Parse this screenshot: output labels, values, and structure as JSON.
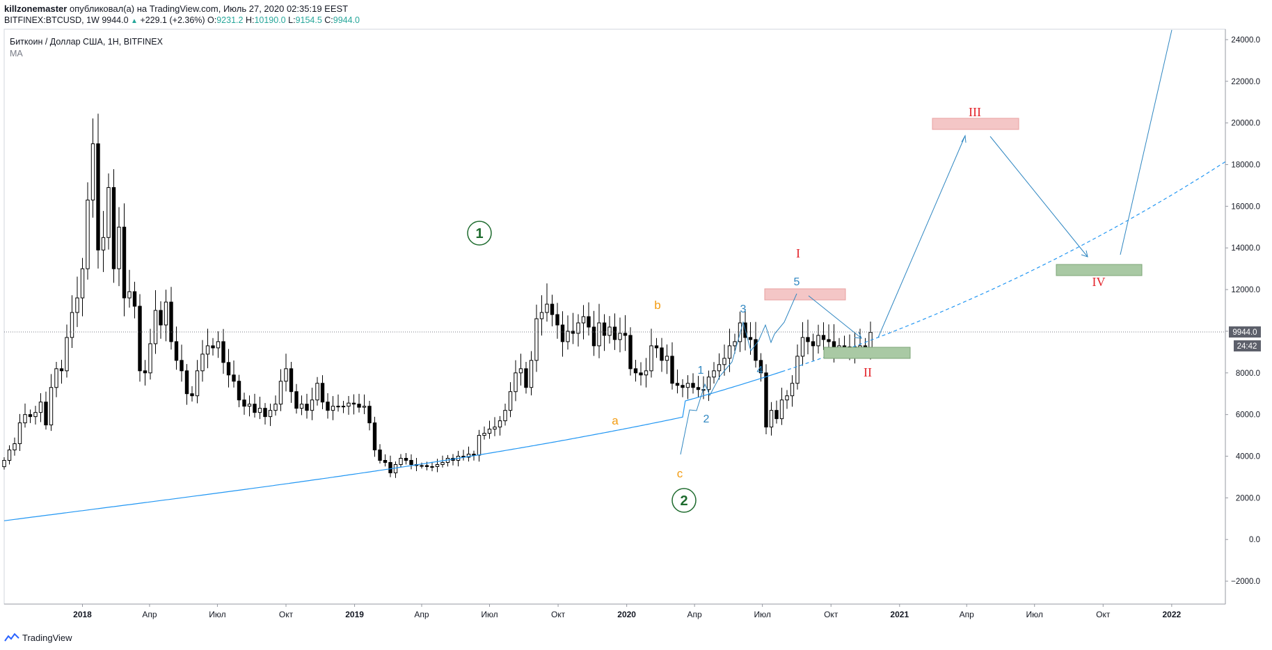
{
  "header": {
    "author": "killzonemaster",
    "published_text": "опубликовал(а) на TradingView.com, Июль 27, 2020 02:35:19 EEST",
    "symbol": "BITFINEX:BTCUSD, 1W",
    "last": "9944.0",
    "change": "+229.1 (+2.36%)",
    "o_label": "O:",
    "o_value": "9231.2",
    "h_label": "H:",
    "h_value": "10190.0",
    "l_label": "L:",
    "l_value": "9154.5",
    "c_label": "C:",
    "c_value": "9944.0"
  },
  "legend": {
    "title": "Биткоин / Доллар США, 1Н, BITFINEX",
    "indicator": "MA"
  },
  "footer": {
    "brand": "TradingView"
  },
  "colors": {
    "candle_up": "#ffffff",
    "candle_down": "#000000",
    "ma_line": "#2196f3",
    "wave_blue": "#2e86c1",
    "wave_red": "#e3242b",
    "wave_orange": "#f39c12",
    "wave_green": "#1e6b2e",
    "resistance_zone": "#f4c6c6",
    "support_zone": "#a9c9a4"
  },
  "chart_data": {
    "type": "candlestick",
    "x_start": "2017-09-18",
    "y_ticks": [
      -2000,
      0,
      2000,
      4000,
      6000,
      8000,
      10000,
      12000,
      14000,
      16000,
      18000,
      20000,
      22000,
      24000
    ],
    "y_tick_labels": [
      "−2000.0",
      "0.0",
      "2000.0",
      "4000.0",
      "6000.0",
      "8000.0",
      "",
      "12000.0",
      "14000.0",
      "16000.0",
      "18000.0",
      "20000.0",
      "22000.0",
      "24000.0"
    ],
    "ylim": [
      -3100,
      24500
    ],
    "xlim": [
      "2017-09-18",
      "2022-03-14"
    ],
    "x_ticks": [
      {
        "date": "2018-01-01",
        "label": "2018",
        "bold": true
      },
      {
        "date": "2018-04-01",
        "label": "Апр",
        "bold": false
      },
      {
        "date": "2018-07-01",
        "label": "Июл",
        "bold": false
      },
      {
        "date": "2018-10-01",
        "label": "Окт",
        "bold": false
      },
      {
        "date": "2019-01-01",
        "label": "2019",
        "bold": true
      },
      {
        "date": "2019-04-01",
        "label": "Апр",
        "bold": false
      },
      {
        "date": "2019-07-01",
        "label": "Июл",
        "bold": false
      },
      {
        "date": "2019-10-01",
        "label": "Окт",
        "bold": false
      },
      {
        "date": "2020-01-01",
        "label": "2020",
        "bold": true
      },
      {
        "date": "2020-04-01",
        "label": "Апр",
        "bold": false
      },
      {
        "date": "2020-07-01",
        "label": "Июл",
        "bold": false
      },
      {
        "date": "2020-10-01",
        "label": "Окт",
        "bold": false
      },
      {
        "date": "2021-01-01",
        "label": "2021",
        "bold": true
      },
      {
        "date": "2021-04-01",
        "label": "Апр",
        "bold": false
      },
      {
        "date": "2021-07-01",
        "label": "Июл",
        "bold": false
      },
      {
        "date": "2021-10-01",
        "label": "Окт",
        "bold": false
      },
      {
        "date": "2022-01-01",
        "label": "2022",
        "bold": true
      }
    ],
    "price_label": "9944.0",
    "countdown_label": "24:42",
    "last_price": 9944,
    "candles_weekly_close": [
      3800,
      4300,
      4600,
      5600,
      6000,
      5900,
      6100,
      6600,
      5500,
      7300,
      8200,
      8100,
      9700,
      10900,
      11600,
      13000,
      16300,
      19000,
      13900,
      14500,
      16900,
      13000,
      15000,
      11600,
      11900,
      11200,
      8100,
      8000,
      9400,
      11000,
      10300,
      11400,
      9500,
      8600,
      8100,
      7000,
      6900,
      8100,
      8900,
      9300,
      9200,
      9500,
      8500,
      7900,
      7600,
      6700,
      6400,
      6500,
      6100,
      6300,
      5900,
      6200,
      6500,
      7600,
      8200,
      7100,
      6300,
      6500,
      6200,
      6700,
      7500,
      6600,
      6200,
      6400,
      6400,
      6400,
      6550,
      6500,
      6350,
      6400,
      5600,
      4300,
      3800,
      3700,
      3200,
      3600,
      3900,
      3800,
      3600,
      3550,
      3550,
      3500,
      3500,
      3600,
      3700,
      3900,
      3800,
      4000,
      3950,
      4100,
      4050,
      5000,
      5100,
      5300,
      5400,
      5700,
      6200,
      7100,
      8000,
      8200,
      7300,
      8600,
      10600,
      10900,
      11300,
      10800,
      10300,
      9500,
      10000,
      9900,
      10400,
      10700,
      10200,
      9300,
      10400,
      9800,
      10200,
      9600,
      9900,
      9800,
      8200,
      8000,
      7900,
      8100,
      9300,
      9200,
      8600,
      8800,
      7500,
      7400,
      7300,
      7500,
      7300,
      7200,
      7200,
      7800,
      8100,
      8400,
      8700,
      9300,
      9500,
      10400,
      9700,
      9600,
      8600,
      8000,
      5400,
      6200,
      5800,
      6700,
      6900,
      7500,
      8800,
      9700,
      9500,
      9300,
      9800,
      9600,
      9500,
      9200,
      9300,
      9200,
      9250,
      9150,
      9300,
      9231,
      9944
    ]
  },
  "annotations": {
    "wave_1_circle": "1",
    "wave_2_circle": "2",
    "wave_a": "a",
    "wave_b": "b",
    "wave_c": "c",
    "sub_1": "1",
    "sub_2": "2",
    "sub_3": "3",
    "sub_4": "4",
    "sub_5": "5",
    "wave_I": "I",
    "wave_II": "II",
    "wave_III": "III",
    "wave_IV": "IV"
  }
}
